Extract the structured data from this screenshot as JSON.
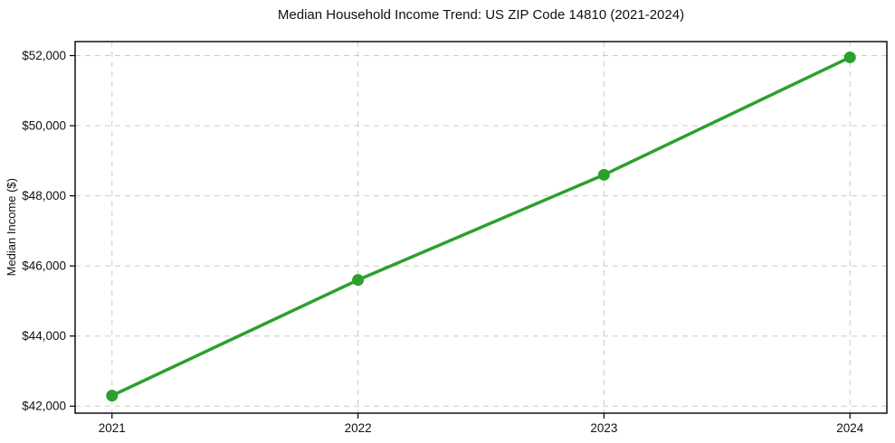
{
  "chart_data": {
    "type": "line",
    "title": "Median Household Income Trend: US ZIP Code 14810 (2021-2024)",
    "xlabel": "",
    "ylabel": "Median Income ($)",
    "x": [
      2021,
      2022,
      2023,
      2024
    ],
    "values": [
      42300,
      45600,
      48600,
      51950
    ],
    "xticks": [
      2021,
      2022,
      2023,
      2024
    ],
    "xtick_labels": [
      "2021",
      "2022",
      "2023",
      "2024"
    ],
    "yticks": [
      42000,
      44000,
      46000,
      48000,
      50000,
      52000
    ],
    "ytick_labels": [
      "$42,000",
      "$44,000",
      "$46,000",
      "$48,000",
      "$50,000",
      "$52,000"
    ],
    "xlim": [
      2020.85,
      2024.15
    ],
    "ylim": [
      41800,
      52400
    ],
    "grid": true,
    "grid_style": "dashed",
    "grid_color": "#cccccc",
    "line_color": "#2ca02c",
    "marker": "circle",
    "background": "#ffffff",
    "legend_position": "none"
  }
}
